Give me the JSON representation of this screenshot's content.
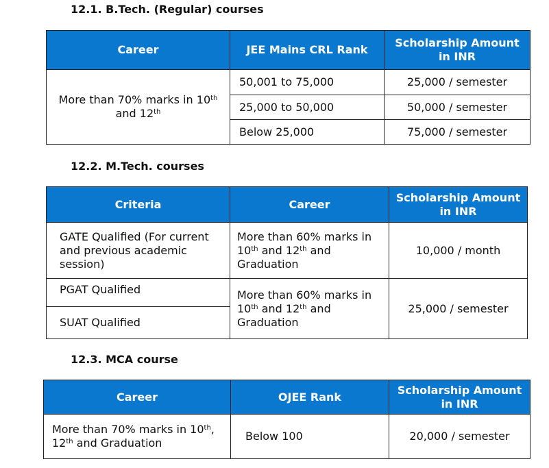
{
  "sections": [
    {
      "heading": "12.1.  B.Tech. (Regular) courses",
      "headers": [
        "Career",
        "JEE Mains CRL Rank",
        "Scholarship Amount in INR"
      ],
      "career": {
        "text": "More than 70% marks in 10",
        "sup1": "th",
        "text2": "and 12",
        "sup2": "th"
      },
      "rows": [
        {
          "rank": "50,001 to 75,000",
          "amount": "25,000 / semester"
        },
        {
          "rank": "25,000 to 50,000",
          "amount": "50,000 / semester"
        },
        {
          "rank": "Below 25,000",
          "amount": "75,000 / semester"
        }
      ]
    },
    {
      "heading": "12.2. M.Tech. courses",
      "headers": [
        "Criteria",
        "Career",
        "Scholarship Amount in INR"
      ],
      "rows": [
        {
          "criteria": "GATE Qualified (For current and previous academic session)",
          "career": {
            "a": "More than 60% marks in",
            "b": "10",
            "sup1": "th",
            "c": "and 12",
            "sup2": "th",
            "d": "and",
            "e": "Graduation"
          },
          "amount": "10,000 / month"
        },
        {
          "criteria": "PGAT Qualified"
        },
        {
          "criteria": "SUAT Qualified"
        }
      ],
      "shared_career": {
        "a": "More than 60% marks in",
        "b": "10",
        "sup1": "th",
        "c": "and 12",
        "sup2": "th",
        "d": "and",
        "e": "Graduation"
      },
      "shared_amount": "25,000 / semester"
    },
    {
      "heading": "12.3. MCA course",
      "headers": [
        "Career",
        "OJEE Rank",
        "Scholarship Amount in INR"
      ],
      "rows": [
        {
          "career": {
            "a": "More than 70% marks in 10",
            "sup1": "th",
            "comma": ",",
            "b": "12",
            "sup2": "th",
            "c": "and Graduation"
          },
          "rank": "Below 100",
          "amount": "20,000 / semester"
        }
      ]
    }
  ]
}
